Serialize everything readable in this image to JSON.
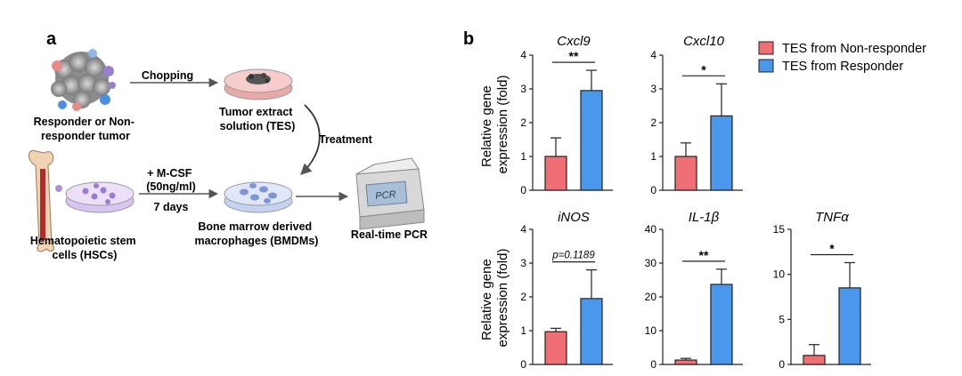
{
  "panel_a": {
    "letter": "a",
    "responder_tumor": [
      "Responder or Non-",
      "responder tumor"
    ],
    "chopping": "Chopping",
    "tes": [
      "Tumor extract",
      "solution (TES)"
    ],
    "treatment": "Treatment",
    "mcsf": [
      "+ M-CSF",
      "(50ng/ml)"
    ],
    "days": "7 days",
    "hsc": [
      "Hematopoietic stem",
      "cells (HSCs)"
    ],
    "bmdm": [
      "Bone marrow derived",
      "macrophages (BMDMs)"
    ],
    "realtime": "Real-time PCR",
    "pcr_screen": "PCR"
  },
  "panel_b": {
    "letter": "b",
    "ylabel": [
      "Relative gene",
      "expression (fold)"
    ],
    "legend": [
      "TES from Non-responder",
      "TES from Responder"
    ]
  },
  "colors": {
    "non_responder": "#f06f74",
    "responder": "#4a97ee"
  },
  "chart_data": [
    {
      "type": "bar",
      "title": "Cxcl9",
      "categories": [
        "TES from Non-responder",
        "TES from Responder"
      ],
      "values": [
        1.0,
        2.95
      ],
      "errors": [
        0.55,
        0.6
      ],
      "ylim": [
        0,
        4
      ],
      "yticks": [
        "0",
        "1",
        "2",
        "3",
        "4"
      ],
      "significance": "**",
      "ylabel": "Relative gene expression (fold)"
    },
    {
      "type": "bar",
      "title": "Cxcl10",
      "categories": [
        "TES from Non-responder",
        "TES from Responder"
      ],
      "values": [
        1.0,
        2.2
      ],
      "errors": [
        0.4,
        0.95
      ],
      "ylim": [
        0,
        4
      ],
      "yticks": [
        "0",
        "1",
        "2",
        "3",
        "4"
      ],
      "significance": "*"
    },
    {
      "type": "bar",
      "title": "iNOS",
      "categories": [
        "TES from Non-responder",
        "TES from Responder"
      ],
      "values": [
        0.97,
        1.95
      ],
      "errors": [
        0.1,
        0.85
      ],
      "ylim": [
        0,
        4
      ],
      "yticks": [
        "0",
        "1",
        "2",
        "3",
        "4"
      ],
      "significance": "p=0.1189",
      "ylabel": "Relative gene expression (fold)"
    },
    {
      "type": "bar",
      "title": "IL-1β",
      "categories": [
        "TES from Non-responder",
        "TES from Responder"
      ],
      "values": [
        1.3,
        23.7
      ],
      "errors": [
        0.5,
        4.5
      ],
      "ylim": [
        0,
        40
      ],
      "yticks": [
        "0",
        "10",
        "20",
        "30",
        "40"
      ],
      "significance": "**"
    },
    {
      "type": "bar",
      "title": "TNFα",
      "categories": [
        "TES from Non-responder",
        "TES from Responder"
      ],
      "values": [
        1.0,
        8.5
      ],
      "errors": [
        1.2,
        2.8
      ],
      "ylim": [
        0,
        15
      ],
      "yticks": [
        "0",
        "5",
        "10",
        "15"
      ],
      "significance": "*"
    }
  ]
}
